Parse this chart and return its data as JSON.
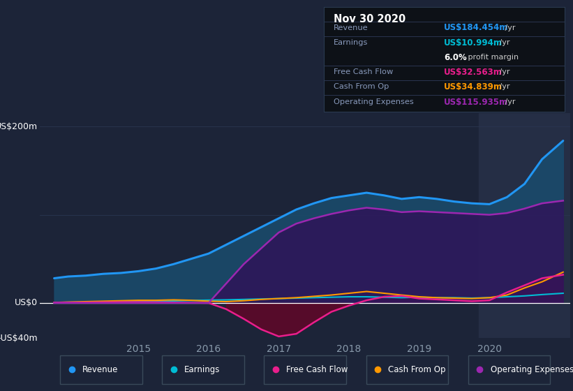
{
  "background_color": "#1c2438",
  "chart_bg_color": "#1c2438",
  "info_box_bg": "#0d1117",
  "grid_color": "#2a3550",
  "legend_border_color": "#3a4a5a",
  "ylim": [
    -40,
    215
  ],
  "xmin": 2013.6,
  "xmax": 2021.15,
  "xticks": [
    2015,
    2016,
    2017,
    2018,
    2019,
    2020
  ],
  "highlight_start": 2019.85,
  "legend_items": [
    {
      "label": "Revenue",
      "color": "#2196f3"
    },
    {
      "label": "Earnings",
      "color": "#00bcd4"
    },
    {
      "label": "Free Cash Flow",
      "color": "#e91e8c"
    },
    {
      "label": "Cash From Op",
      "color": "#ff9800"
    },
    {
      "label": "Operating Expenses",
      "color": "#9c27b0"
    }
  ],
  "info_title": "Nov 30 2020",
  "info_rows": [
    {
      "label": "Revenue",
      "value": "US$184.454m",
      "value_color": "#2196f3",
      "suffix": " /yr"
    },
    {
      "label": "Earnings",
      "value": "US$10.994m",
      "value_color": "#00bcd4",
      "suffix": " /yr"
    },
    {
      "label": "",
      "value": "6.0%",
      "value_color": "#ffffff",
      "suffix": " profit margin"
    },
    {
      "label": "Free Cash Flow",
      "value": "US$32.563m",
      "value_color": "#e91e8c",
      "suffix": " /yr"
    },
    {
      "label": "Cash From Op",
      "value": "US$34.839m",
      "value_color": "#ff9800",
      "suffix": " /yr"
    },
    {
      "label": "Operating Expenses",
      "value": "US$115.935m",
      "value_color": "#9c27b0",
      "suffix": " /yr"
    }
  ],
  "series": {
    "years": [
      2013.8,
      2014.0,
      2014.25,
      2014.5,
      2014.75,
      2015.0,
      2015.25,
      2015.5,
      2015.75,
      2016.0,
      2016.25,
      2016.5,
      2016.75,
      2017.0,
      2017.25,
      2017.5,
      2017.75,
      2018.0,
      2018.25,
      2018.5,
      2018.75,
      2019.0,
      2019.25,
      2019.5,
      2019.75,
      2020.0,
      2020.25,
      2020.5,
      2020.75,
      2021.05
    ],
    "revenue": [
      28,
      30,
      31,
      33,
      34,
      36,
      39,
      44,
      50,
      56,
      66,
      76,
      86,
      96,
      106,
      113,
      119,
      122,
      125,
      122,
      118,
      120,
      118,
      115,
      113,
      112,
      120,
      135,
      163,
      184
    ],
    "op_exp": [
      0,
      0,
      0,
      0,
      0,
      0,
      0,
      0,
      0,
      0,
      22,
      44,
      62,
      80,
      90,
      96,
      101,
      105,
      108,
      106,
      103,
      104,
      103,
      102,
      101,
      100,
      102,
      107,
      113,
      116
    ],
    "free_cash_flow": [
      0.5,
      0.5,
      0.5,
      0.8,
      1.0,
      1.0,
      0.8,
      0.5,
      0.2,
      0,
      -7,
      -18,
      -30,
      -38,
      -35,
      -22,
      -10,
      -3,
      3,
      7,
      8,
      5,
      4,
      3,
      2,
      3,
      12,
      20,
      28,
      32
    ],
    "cash_from_op": [
      0.5,
      1,
      1.5,
      2,
      2.5,
      3,
      3,
      3.5,
      3,
      2,
      1.5,
      2.5,
      4,
      5,
      6,
      7.5,
      9,
      11,
      13,
      11,
      9,
      7,
      6,
      5.5,
      5,
      6,
      9,
      17,
      24,
      35
    ],
    "earnings": [
      0.5,
      0.8,
      1,
      1.2,
      1.5,
      1.8,
      2,
      2.3,
      2.8,
      3.2,
      3.5,
      4,
      4.5,
      5,
      5.5,
      6,
      6.5,
      7,
      7,
      6.5,
      6,
      6.5,
      6,
      6,
      5.5,
      6,
      7,
      8,
      9.5,
      11
    ]
  }
}
